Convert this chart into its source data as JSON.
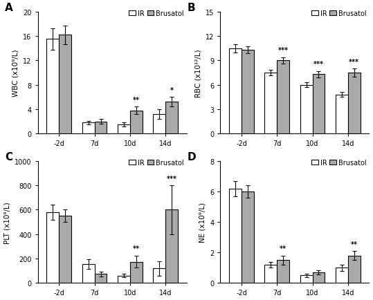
{
  "panels": [
    {
      "label": "A",
      "ylabel": "WBC (x10⁹/L)",
      "ylim": [
        0,
        20
      ],
      "yticks": [
        0,
        4,
        8,
        12,
        16,
        20
      ],
      "categories": [
        "-2d",
        "7d",
        "10d",
        "14d"
      ],
      "ir_values": [
        15.5,
        1.8,
        1.5,
        3.2
      ],
      "ir_errors": [
        1.8,
        0.3,
        0.3,
        0.8
      ],
      "bru_values": [
        16.2,
        2.0,
        3.8,
        5.2
      ],
      "bru_errors": [
        1.5,
        0.4,
        0.6,
        0.8
      ],
      "sig_labels": [
        "",
        "",
        "**",
        "*"
      ],
      "sig_on_bru": [
        false,
        false,
        true,
        true
      ]
    },
    {
      "label": "B",
      "ylabel": "RBC (x10¹²/L)",
      "ylim": [
        0,
        15
      ],
      "yticks": [
        0,
        3,
        6,
        9,
        12,
        15
      ],
      "categories": [
        "-2d",
        "7d",
        "10d",
        "14d"
      ],
      "ir_values": [
        10.5,
        7.5,
        6.0,
        4.8
      ],
      "ir_errors": [
        0.5,
        0.3,
        0.3,
        0.3
      ],
      "bru_values": [
        10.3,
        9.0,
        7.3,
        7.5
      ],
      "bru_errors": [
        0.4,
        0.4,
        0.4,
        0.5
      ],
      "sig_labels": [
        "",
        "***",
        "***",
        "***"
      ],
      "sig_on_bru": [
        false,
        true,
        true,
        true
      ]
    },
    {
      "label": "C",
      "ylabel": "PLT (x10⁹/L)",
      "ylim": [
        0,
        1000
      ],
      "yticks": [
        0,
        200,
        400,
        600,
        800,
        1000
      ],
      "categories": [
        "-2d",
        "7d",
        "10d",
        "14d"
      ],
      "ir_values": [
        580,
        155,
        60,
        120
      ],
      "ir_errors": [
        60,
        40,
        15,
        60
      ],
      "bru_values": [
        550,
        75,
        175,
        600
      ],
      "bru_errors": [
        50,
        20,
        50,
        200
      ],
      "sig_labels": [
        "",
        "",
        "**",
        "***"
      ],
      "sig_on_bru": [
        false,
        false,
        true,
        true
      ]
    },
    {
      "label": "D",
      "ylabel": "NE (x10⁹/L)",
      "ylim": [
        0,
        8
      ],
      "yticks": [
        0,
        2,
        4,
        6,
        8
      ],
      "categories": [
        "-2d",
        "7d",
        "10d",
        "14d"
      ],
      "ir_values": [
        6.2,
        1.2,
        0.5,
        1.0
      ],
      "ir_errors": [
        0.5,
        0.2,
        0.1,
        0.2
      ],
      "bru_values": [
        6.0,
        1.5,
        0.7,
        1.8
      ],
      "bru_errors": [
        0.4,
        0.3,
        0.15,
        0.3
      ],
      "sig_labels": [
        "",
        "**",
        "",
        "**"
      ],
      "sig_on_bru": [
        false,
        true,
        false,
        true
      ]
    }
  ],
  "ir_color": "#ffffff",
  "bru_color": "#aaaaaa",
  "bar_edgecolor": "#000000",
  "bar_width": 0.35,
  "fontsize": 7,
  "sig_fontsize": 7,
  "legend_fontsize": 7,
  "panel_label_fontsize": 11
}
